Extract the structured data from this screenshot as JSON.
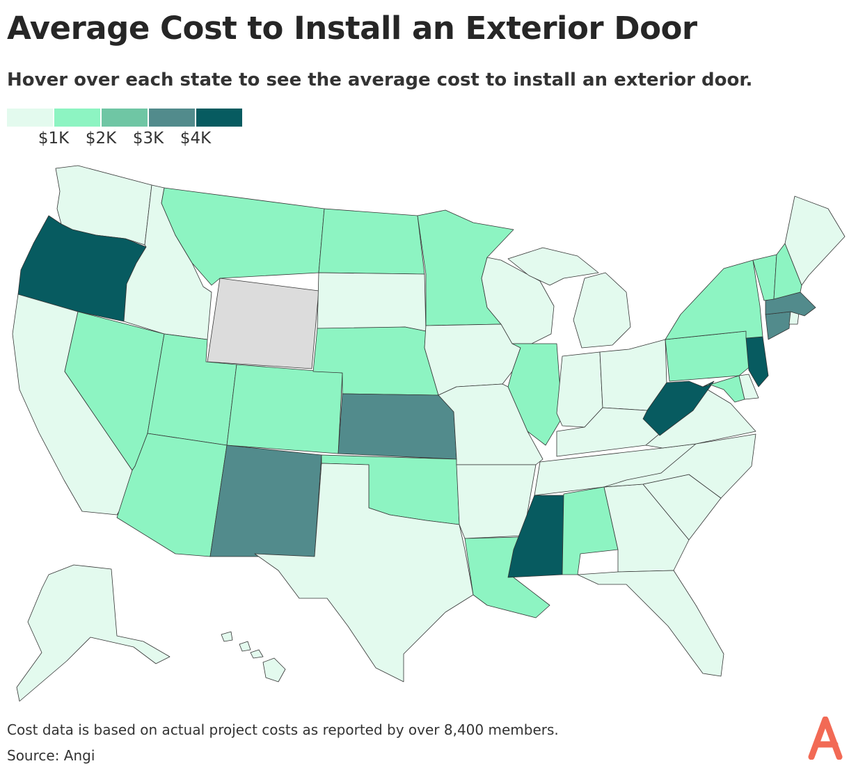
{
  "title": "Average Cost to Install an Exterior Door",
  "subtitle": "Hover over each state to see the average cost to install an exterior door.",
  "legend": {
    "labels": [
      "$1K",
      "$2K",
      "$3K",
      "$4K"
    ],
    "colors": [
      "#e3faee",
      "#8df4c2",
      "#6fc6a4",
      "#528b8c",
      "#075b60"
    ]
  },
  "colors": {
    "tier1": "#e3faee",
    "tier2": "#8df4c2",
    "tier3": "#528b8c",
    "tier4": "#075b60",
    "nodata": "#dcdcdc",
    "brand": "#f26a55"
  },
  "chart_data": {
    "type": "choropleth",
    "title": "Average Cost to Install an Exterior Door",
    "legend_breaks": [
      "$1K",
      "$2K",
      "$3K",
      "$4K"
    ],
    "tiers": {
      "below_1K": [
        "WA",
        "ID",
        "CA",
        "SD",
        "IA",
        "WI",
        "MI",
        "MO",
        "IN",
        "OH",
        "KY",
        "TN",
        "AR",
        "TX",
        "GA",
        "SC",
        "NC",
        "VA",
        "FL",
        "ME",
        "AK",
        "HI",
        "DE",
        "RI"
      ],
      "1K_2K": [
        "MT",
        "ND",
        "MN",
        "NV",
        "UT",
        "CO",
        "NE",
        "AZ",
        "OK",
        "IL",
        "LA",
        "AL",
        "NY",
        "VT",
        "NH",
        "PA",
        "MD"
      ],
      "3K_4K": [
        "KS",
        "NM",
        "MA",
        "CT"
      ],
      "above_4K": [
        "OR",
        "MS",
        "WV",
        "NJ"
      ],
      "no_data": [
        "WY"
      ]
    }
  },
  "footnote": "Cost data is based on actual project costs as reported by over 8,400 members.",
  "source": "Source: Angi",
  "brand_icon": "angi-logo-icon"
}
